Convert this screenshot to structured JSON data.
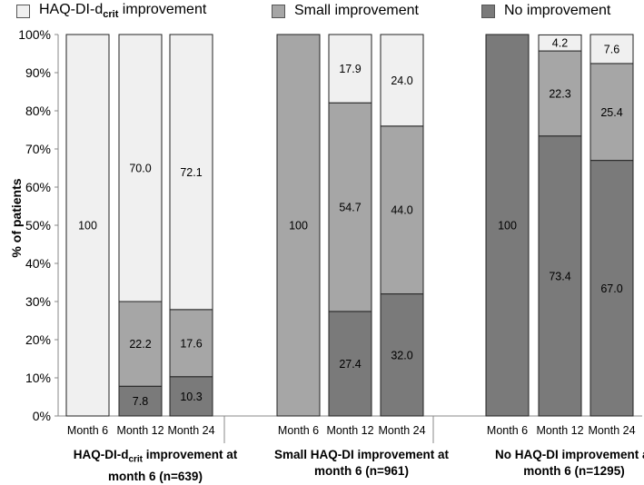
{
  "chart_data": {
    "type": "bar",
    "stacked": true,
    "ylabel": "% of patients",
    "ylim": [
      0,
      100
    ],
    "yticks": [
      "0%",
      "10%",
      "20%",
      "30%",
      "40%",
      "50%",
      "60%",
      "70%",
      "80%",
      "90%",
      "100%"
    ],
    "legend": [
      {
        "name": "HAQ-DI-d",
        "sub": "crit",
        "rest": " improvement",
        "color": "#f0f0f0"
      },
      {
        "name": "Small improvement",
        "color": "#a6a6a6"
      },
      {
        "name": "No improvement",
        "color": "#7a7a7a"
      }
    ],
    "groups": [
      {
        "title_parts": [
          "HAQ-DI-d",
          "crit",
          " improvement at",
          "month 6 (n=639)"
        ],
        "categories": [
          "Month 6",
          "Month 12",
          "Month 24"
        ],
        "series": [
          {
            "name": "No improvement",
            "values": [
              0,
              7.8,
              10.3
            ]
          },
          {
            "name": "Small improvement",
            "values": [
              0,
              22.2,
              17.6
            ]
          },
          {
            "name": "HAQ-DI-d crit improvement",
            "values": [
              100,
              70.0,
              72.1
            ]
          }
        ],
        "labels": [
          {
            "category": 0,
            "series": 2,
            "text": "100"
          },
          {
            "category": 1,
            "series": 0,
            "text": "7.8"
          },
          {
            "category": 1,
            "series": 1,
            "text": "22.2"
          },
          {
            "category": 1,
            "series": 2,
            "text": "70.0"
          },
          {
            "category": 2,
            "series": 0,
            "text": "10.3"
          },
          {
            "category": 2,
            "series": 1,
            "text": "17.6"
          },
          {
            "category": 2,
            "series": 2,
            "text": "72.1"
          }
        ]
      },
      {
        "title_parts": [
          "Small HAQ-DI improvement at",
          "month 6 (n=961)"
        ],
        "categories": [
          "Month 6",
          "Month 12",
          "Month 24"
        ],
        "series": [
          {
            "name": "No improvement",
            "values": [
              0,
              27.4,
              32.0
            ]
          },
          {
            "name": "Small improvement",
            "values": [
              100,
              54.7,
              44.0
            ]
          },
          {
            "name": "HAQ-DI-d crit improvement",
            "values": [
              0,
              17.9,
              24.0
            ]
          }
        ],
        "labels": [
          {
            "category": 0,
            "series": 1,
            "text": "100"
          },
          {
            "category": 1,
            "series": 0,
            "text": "27.4"
          },
          {
            "category": 1,
            "series": 1,
            "text": "54.7"
          },
          {
            "category": 1,
            "series": 2,
            "text": "17.9"
          },
          {
            "category": 2,
            "series": 0,
            "text": "32.0"
          },
          {
            "category": 2,
            "series": 1,
            "text": "44.0"
          },
          {
            "category": 2,
            "series": 2,
            "text": "24.0"
          }
        ]
      },
      {
        "title_parts": [
          "No HAQ-DI improvement at",
          "month 6 (n=1295)"
        ],
        "categories": [
          "Month 6",
          "Month 12",
          "Month 24"
        ],
        "series": [
          {
            "name": "No improvement",
            "values": [
              100,
              73.4,
              67.0
            ]
          },
          {
            "name": "Small improvement",
            "values": [
              0,
              22.3,
              25.4
            ]
          },
          {
            "name": "HAQ-DI-d crit improvement",
            "values": [
              0,
              4.2,
              7.6
            ]
          }
        ],
        "labels": [
          {
            "category": 0,
            "series": 0,
            "text": "100"
          },
          {
            "category": 1,
            "series": 0,
            "text": "73.4"
          },
          {
            "category": 1,
            "series": 1,
            "text": "22.3"
          },
          {
            "category": 1,
            "series": 2,
            "text": "4.2"
          },
          {
            "category": 2,
            "series": 0,
            "text": "67.0"
          },
          {
            "category": 2,
            "series": 1,
            "text": "25.4"
          },
          {
            "category": 2,
            "series": 2,
            "text": "7.6"
          }
        ]
      }
    ],
    "series_colors": [
      "#7a7a7a",
      "#a6a6a6",
      "#f0f0f0"
    ]
  }
}
